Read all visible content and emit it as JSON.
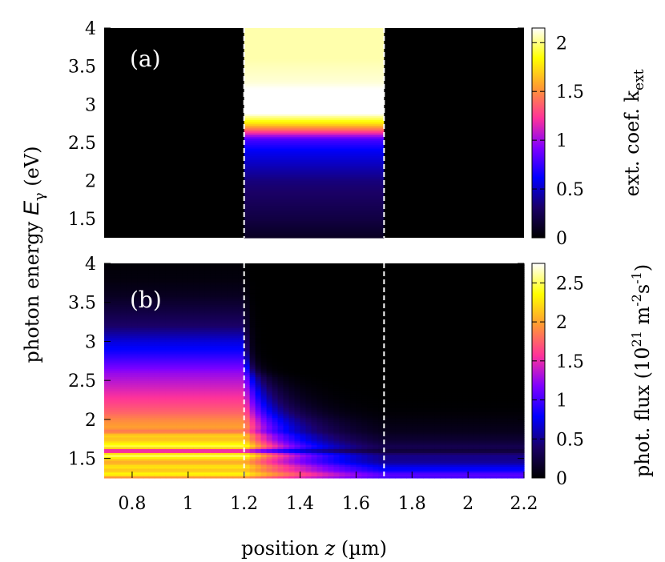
{
  "chart_data": {
    "type": "heatmap",
    "colormap": [
      "#000000",
      "#1a0066",
      "#0000ff",
      "#7f00ff",
      "#ff3399",
      "#ff9933",
      "#ffff00",
      "#ffffff"
    ],
    "xlabel": {
      "prefix": "position ",
      "symbol": "z",
      "unit": " (µm)"
    },
    "ylabel": {
      "prefix": "photon energy ",
      "symbol": "E",
      "subscript": "γ",
      "unit": " (eV)"
    },
    "x_range": [
      0.7,
      2.2
    ],
    "x_ticks": [
      "0.8",
      "1",
      "1.2",
      "1.4",
      "1.6",
      "1.8",
      "2",
      "2.2"
    ],
    "x_tick_values": [
      0.8,
      1.0,
      1.2,
      1.4,
      1.6,
      1.8,
      2.0,
      2.2
    ],
    "y_range": [
      1.25,
      4.0
    ],
    "y_ticks": [
      "1.5",
      "2",
      "2.5",
      "3",
      "3.5",
      "4"
    ],
    "y_tick_values": [
      1.5,
      2.0,
      2.5,
      3.0,
      3.5,
      4.0
    ],
    "layer_boundaries_um": [
      1.2,
      1.7
    ],
    "panels": [
      {
        "label": "(a)",
        "quantity": "extinction coefficient",
        "colorbar_label": {
          "prefix": "ext. coef. k",
          "subscript": "ext"
        },
        "colorbar_range": [
          0,
          2.15
        ],
        "colorbar_ticks": [
          "0",
          "0.5",
          "1",
          "1.5",
          "2"
        ],
        "colorbar_tick_values": [
          0,
          0.5,
          1,
          1.5,
          2
        ],
        "profile": {
          "note_values": "k_ext nonzero only for 1.2 < z < 1.7",
          "energy_eV": [
            1.25,
            1.5,
            2.0,
            2.4,
            2.55,
            2.65,
            2.75,
            2.9,
            3.0,
            3.1,
            3.3,
            3.6,
            4.0
          ],
          "k_ext": [
            0.1,
            0.2,
            0.35,
            0.6,
            0.8,
            1.3,
            1.75,
            2.2,
            2.3,
            2.2,
            2.1,
            2.05,
            2.05
          ]
        }
      },
      {
        "label": "(b)",
        "quantity": "photon flux",
        "colorbar_label": {
          "prefix": "phot. flux (10",
          "sup1": "21",
          "mid1": " m",
          "sup2": "-2",
          "mid2": "s",
          "sup3": "-1",
          "suffix": ")"
        },
        "colorbar_range": [
          0,
          2.75
        ],
        "colorbar_ticks": [
          "0",
          "0.5",
          "1",
          "1.5",
          "2",
          "2.5"
        ],
        "colorbar_tick_values": [
          0,
          0.5,
          1,
          1.5,
          2,
          2.5
        ],
        "incident_spectrum": {
          "energy_eV": [
            1.25,
            1.3,
            1.35,
            1.4,
            1.45,
            1.5,
            1.55,
            1.6,
            1.65,
            1.7,
            1.75,
            1.8,
            1.85,
            1.9,
            2.0,
            2.1,
            2.2,
            2.3,
            2.4,
            2.5,
            2.6,
            2.7,
            2.8,
            2.9,
            3.0,
            3.1,
            3.2,
            3.4,
            3.6,
            3.8,
            4.0
          ],
          "flux": [
            1.8,
            2.4,
            2.1,
            2.3,
            2.0,
            2.2,
            2.6,
            1.2,
            2.5,
            2.3,
            2.1,
            2.2,
            1.8,
            2.0,
            1.9,
            1.75,
            1.65,
            1.55,
            1.45,
            1.35,
            1.25,
            1.1,
            0.95,
            0.8,
            0.7,
            0.55,
            0.4,
            0.25,
            0.12,
            0.05,
            0.02
          ]
        }
      }
    ]
  }
}
